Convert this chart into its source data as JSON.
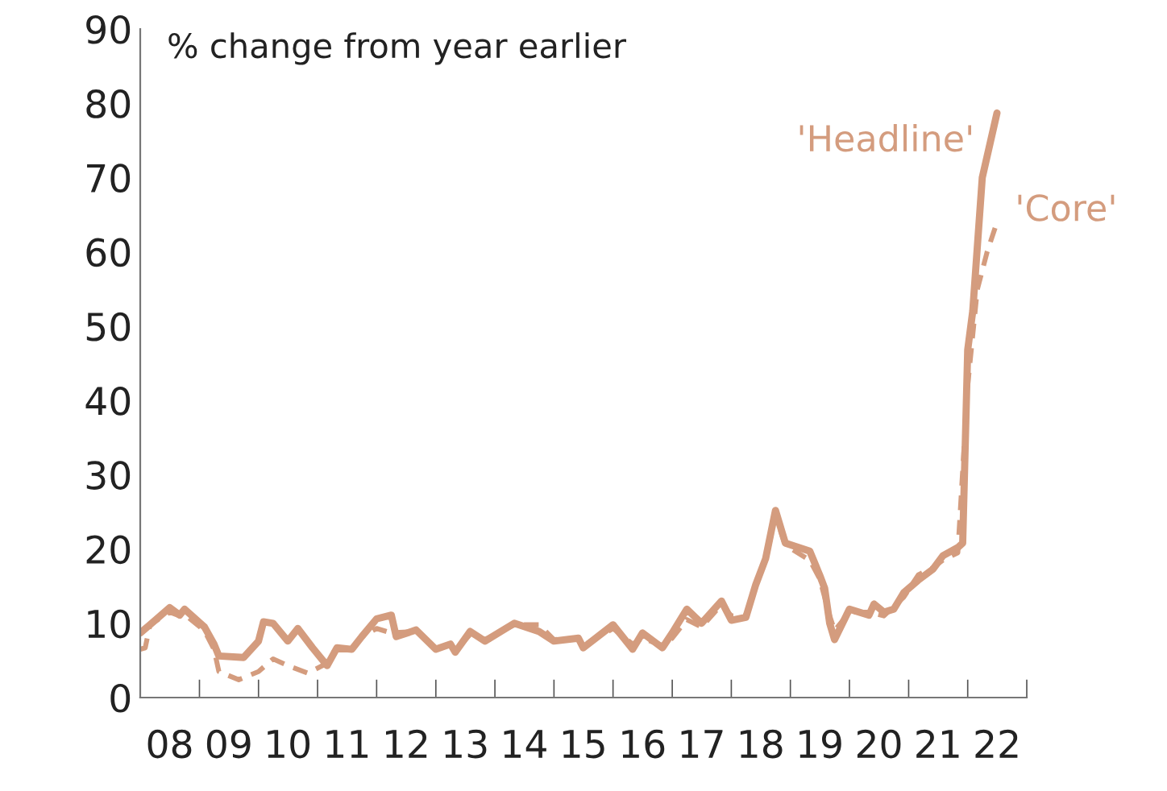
{
  "chart_data": {
    "type": "line",
    "ylabel": "% change from year earlier",
    "xlim": [
      "2008-01",
      "2023-01"
    ],
    "ylim": [
      0,
      90
    ],
    "yticks": [
      0,
      10,
      20,
      30,
      40,
      50,
      60,
      70,
      80,
      90
    ],
    "xticks": [
      {
        "value": "2008-01",
        "label": null
      },
      {
        "value": "2008-07",
        "label": "08"
      },
      {
        "value": "2009-01",
        "label": null
      },
      {
        "value": "2009-07",
        "label": "09"
      },
      {
        "value": "2010-01",
        "label": null
      },
      {
        "value": "2010-07",
        "label": "10"
      },
      {
        "value": "2011-01",
        "label": null
      },
      {
        "value": "2011-07",
        "label": "11"
      },
      {
        "value": "2012-01",
        "label": null
      },
      {
        "value": "2012-07",
        "label": "12"
      },
      {
        "value": "2013-01",
        "label": null
      },
      {
        "value": "2013-07",
        "label": "13"
      },
      {
        "value": "2014-01",
        "label": null
      },
      {
        "value": "2014-07",
        "label": "14"
      },
      {
        "value": "2015-01",
        "label": null
      },
      {
        "value": "2015-07",
        "label": "15"
      },
      {
        "value": "2016-01",
        "label": null
      },
      {
        "value": "2016-07",
        "label": "16"
      },
      {
        "value": "2017-01",
        "label": null
      },
      {
        "value": "2017-07",
        "label": "17"
      },
      {
        "value": "2018-01",
        "label": null
      },
      {
        "value": "2018-07",
        "label": "18"
      },
      {
        "value": "2019-01",
        "label": null
      },
      {
        "value": "2019-07",
        "label": "19"
      },
      {
        "value": "2020-01",
        "label": null
      },
      {
        "value": "2020-07",
        "label": "20"
      },
      {
        "value": "2021-01",
        "label": null
      },
      {
        "value": "2021-07",
        "label": "21"
      },
      {
        "value": "2022-01",
        "label": null
      },
      {
        "value": "2022-07",
        "label": "22"
      },
      {
        "value": "2023-01",
        "label": null
      }
    ],
    "grid": false,
    "legend": false,
    "series": [
      {
        "name": "'Headline'",
        "color": "#d49c7e",
        "line_style": "solid",
        "x": [
          "2008-01",
          "2008-03",
          "2008-07",
          "2008-09",
          "2008-10",
          "2009-02",
          "2009-04",
          "2009-05",
          "2009-10",
          "2010-01",
          "2010-02",
          "2010-04",
          "2010-07",
          "2010-09",
          "2010-12",
          "2011-03",
          "2011-05",
          "2011-08",
          "2011-10",
          "2012-01",
          "2012-04",
          "2012-05",
          "2012-09",
          "2013-01",
          "2013-04",
          "2013-05",
          "2013-08",
          "2013-11",
          "2014-05",
          "2014-10",
          "2015-01",
          "2015-06",
          "2015-07",
          "2016-01",
          "2016-05",
          "2016-07",
          "2016-11",
          "2017-01",
          "2017-04",
          "2017-07",
          "2017-11",
          "2018-01",
          "2018-04",
          "2018-06",
          "2018-08",
          "2018-10",
          "2018-12",
          "2019-05",
          "2019-07",
          "2019-08",
          "2019-09",
          "2019-10",
          "2020-01",
          "2020-05",
          "2020-06",
          "2020-08",
          "2020-10",
          "2020-12",
          "2021-03",
          "2021-06",
          "2021-08",
          "2021-11",
          "2021-12",
          "2022-01",
          "2022-02",
          "2022-04",
          "2022-07"
        ],
        "values": [
          8.7,
          9.8,
          12.1,
          11.1,
          11.9,
          9.5,
          7.2,
          5.6,
          5.4,
          7.6,
          10.2,
          10.0,
          7.6,
          9.3,
          6.7,
          4.3,
          6.7,
          6.5,
          8.2,
          10.6,
          11.1,
          8.2,
          9.1,
          6.5,
          7.2,
          6.1,
          8.9,
          7.6,
          10.0,
          8.9,
          7.6,
          8.0,
          6.7,
          9.8,
          6.5,
          8.7,
          6.7,
          8.7,
          11.9,
          10.0,
          13.0,
          10.4,
          10.8,
          15.2,
          18.7,
          25.2,
          20.8,
          19.7,
          16.5,
          14.7,
          10.0,
          7.8,
          11.9,
          11.1,
          12.6,
          11.5,
          11.9,
          14.1,
          15.8,
          17.3,
          19.1,
          20.2,
          20.8,
          46.8,
          52.0,
          70.0,
          78.7
        ]
      },
      {
        "name": "'Core'",
        "color": "#d49c7e",
        "line_style": "dashed",
        "x": [
          "2008-01",
          "2008-02",
          "2008-03",
          "2008-07",
          "2008-09",
          "2008-10",
          "2009-02",
          "2009-04",
          "2009-05",
          "2009-09",
          "2010-01",
          "2010-04",
          "2010-07",
          "2010-11",
          "2011-02",
          "2011-05",
          "2011-08",
          "2011-10",
          "2012-01",
          "2012-04",
          "2012-09",
          "2013-01",
          "2013-04",
          "2013-05",
          "2013-08",
          "2013-11",
          "2014-05",
          "2014-10",
          "2015-01",
          "2015-06",
          "2015-07",
          "2016-01",
          "2016-05",
          "2016-07",
          "2016-11",
          "2017-01",
          "2017-04",
          "2017-07",
          "2017-11",
          "2018-01",
          "2018-04",
          "2018-06",
          "2018-08",
          "2018-10",
          "2018-12",
          "2019-05",
          "2019-07",
          "2019-09",
          "2019-10",
          "2020-01",
          "2020-05",
          "2020-08",
          "2020-12",
          "2021-03",
          "2021-06",
          "2021-08",
          "2021-11",
          "2022-01",
          "2022-03",
          "2022-05",
          "2022-07"
        ],
        "values": [
          6.5,
          6.7,
          9.8,
          11.5,
          11.0,
          11.2,
          9.0,
          6.5,
          3.5,
          2.4,
          3.5,
          5.2,
          4.3,
          3.3,
          4.3,
          6.7,
          6.5,
          8.2,
          9.3,
          8.7,
          8.9,
          6.7,
          7.0,
          6.3,
          8.5,
          7.8,
          9.8,
          9.8,
          7.8,
          8.0,
          7.0,
          9.3,
          7.2,
          8.0,
          7.0,
          8.0,
          10.5,
          9.5,
          12.5,
          11.0,
          11.0,
          15.0,
          18.5,
          24.5,
          20.5,
          18.5,
          16.0,
          11.0,
          9.0,
          11.5,
          11.5,
          11.0,
          13.5,
          16.5,
          17.5,
          18.5,
          19.5,
          42.0,
          54.9,
          60.0,
          64.0
        ]
      }
    ]
  }
}
